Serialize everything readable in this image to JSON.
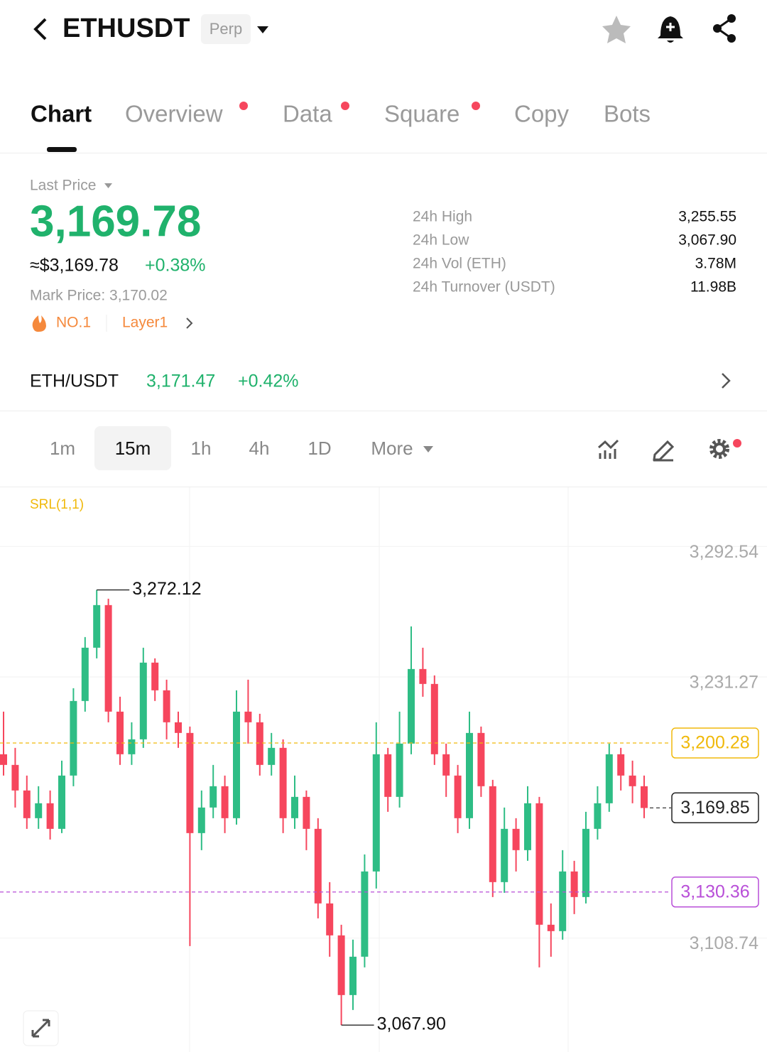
{
  "header": {
    "symbol": "ETHUSDT",
    "badge": "Perp"
  },
  "tabs": [
    "Chart",
    "Overview",
    "Data",
    "Square",
    "Copy",
    "Bots"
  ],
  "price": {
    "caption": "Last Price",
    "last": "3,169.78",
    "usd": "≈$3,169.78",
    "change": "+0.38%",
    "mark": "Mark Price: 3,170.02",
    "rank": "NO.1",
    "tag": "Layer1"
  },
  "stats": [
    {
      "label": "24h High",
      "value": "3,255.55"
    },
    {
      "label": "24h Low",
      "value": "3,067.90"
    },
    {
      "label": "24h Vol (ETH)",
      "value": "3.78M"
    },
    {
      "label": "24h Turnover (USDT)",
      "value": "11.98B"
    }
  ],
  "spot": {
    "pair": "ETH/USDT",
    "price": "3,171.47",
    "change": "+0.42%"
  },
  "intervals": [
    "1m",
    "15m",
    "1h",
    "4h",
    "1D",
    "More"
  ],
  "chart_data": {
    "type": "candlestick",
    "indicator": "SRL(1,1)",
    "up_color": "#2ebd85",
    "down_color": "#f6465d",
    "ylim": [
      3055.28,
      3318.95
    ],
    "yticks": [
      {
        "value": 3292.54,
        "label": "3,292.54"
      },
      {
        "value": 3231.27,
        "label": "3,231.27"
      },
      {
        "value": 3108.74,
        "label": "3,108.74"
      }
    ],
    "open": [
      3195,
      3190,
      3178,
      3165,
      3172,
      3160,
      3185,
      3220,
      3245,
      3265,
      3215,
      3195,
      3202,
      3238,
      3225,
      3210,
      3205,
      3158,
      3170,
      3180,
      3165,
      3215,
      3210,
      3190,
      3198,
      3165,
      3175,
      3160,
      3125,
      3110,
      3082,
      3100,
      3140,
      3195,
      3175,
      3200,
      3235,
      3228,
      3195,
      3185,
      3165,
      3205,
      3180,
      3135,
      3160,
      3150,
      3172,
      3115,
      3112,
      3140,
      3128,
      3160,
      3172,
      3195,
      3185,
      3180
    ],
    "high": [
      3215,
      3198,
      3185,
      3180,
      3178,
      3192,
      3226,
      3250,
      3272.12,
      3268,
      3222,
      3210,
      3245,
      3240,
      3230,
      3215,
      3208,
      3178,
      3190,
      3185,
      3225,
      3230,
      3214,
      3205,
      3202,
      3185,
      3178,
      3165,
      3135,
      3115,
      3108,
      3148,
      3210,
      3198,
      3215,
      3255,
      3245,
      3232,
      3200,
      3190,
      3215,
      3208,
      3183,
      3170,
      3165,
      3180,
      3175,
      3125,
      3150,
      3145,
      3168,
      3180,
      3200,
      3198,
      3192,
      3185
    ],
    "low": [
      3185,
      3170,
      3160,
      3160,
      3155,
      3158,
      3180,
      3215,
      3240,
      3210,
      3190,
      3190,
      3198,
      3220,
      3202,
      3198,
      3105,
      3150,
      3165,
      3158,
      3162,
      3200,
      3185,
      3185,
      3158,
      3160,
      3150,
      3118,
      3100,
      3067.9,
      3075,
      3095,
      3132,
      3168,
      3170,
      3195,
      3222,
      3190,
      3175,
      3158,
      3160,
      3175,
      3128,
      3130,
      3140,
      3145,
      3095,
      3100,
      3108,
      3120,
      3125,
      3155,
      3168,
      3178,
      3172,
      3165
    ],
    "close": [
      3190,
      3178,
      3165,
      3172,
      3160,
      3185,
      3220,
      3245,
      3265,
      3215,
      3195,
      3202,
      3238,
      3225,
      3210,
      3205,
      3158,
      3170,
      3180,
      3165,
      3215,
      3210,
      3190,
      3198,
      3165,
      3175,
      3160,
      3125,
      3110,
      3082,
      3100,
      3140,
      3195,
      3175,
      3200,
      3235,
      3228,
      3195,
      3185,
      3165,
      3205,
      3180,
      3135,
      3160,
      3150,
      3172,
      3115,
      3112,
      3140,
      3128,
      3160,
      3172,
      3195,
      3185,
      3180,
      3169.78
    ],
    "lines": [
      {
        "value": 3200.28,
        "label": "3,200.28",
        "color": "#f0b90b"
      },
      {
        "value": 3130.36,
        "label": "3,130.36",
        "color": "#b84fd8"
      },
      {
        "value": 3169.85,
        "label": "3,169.85",
        "color": "#222222"
      }
    ],
    "high_label": {
      "index": 8,
      "value": 3272.12,
      "label": "3,272.12"
    },
    "low_label": {
      "index": 29,
      "value": 3067.9,
      "label": "3,067.90"
    }
  }
}
